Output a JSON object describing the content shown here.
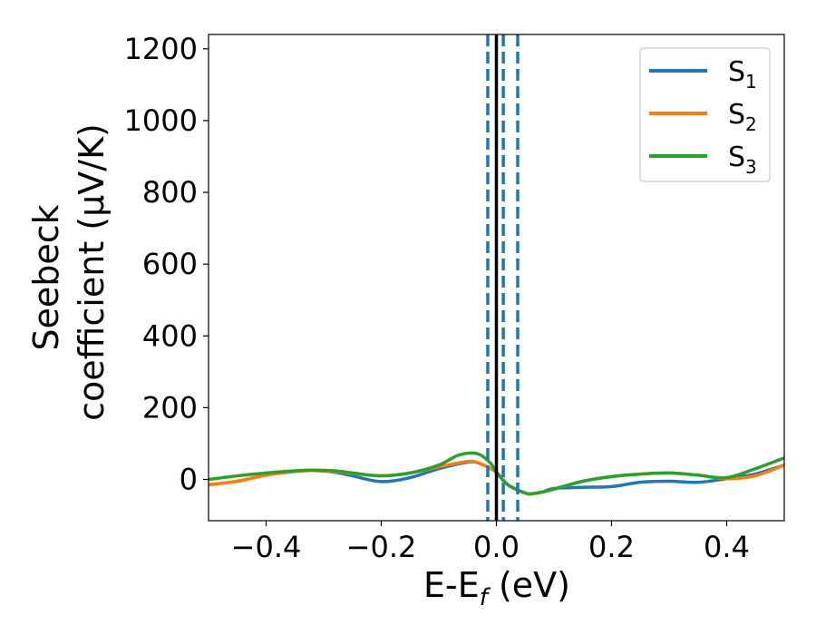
{
  "chart_data": {
    "type": "line",
    "xlabel": "E-E$_f$ (eV)",
    "xlabel_parts": {
      "base": "E-E",
      "sub": "f",
      "tail": " (eV)"
    },
    "ylabel_line1": "Seebeck",
    "ylabel_line2": "coefficient  (μV/K)",
    "xlim": [
      -0.5,
      0.5
    ],
    "ylim": [
      -115,
      1240
    ],
    "xticks": [
      -0.4,
      -0.2,
      0.0,
      0.2,
      0.4
    ],
    "xtick_labels": [
      "−0.4",
      "−0.2",
      "0.0",
      "0.2",
      "0.4"
    ],
    "yticks": [
      0,
      200,
      400,
      600,
      800,
      1000,
      1200
    ],
    "ytick_labels": [
      "0",
      "200",
      "400",
      "600",
      "800",
      "1000",
      "1200"
    ],
    "grid": false,
    "legend_position": "top-right",
    "vlines": [
      {
        "x": 0.0,
        "style": "solid",
        "color": "#000000"
      },
      {
        "x": -0.015,
        "style": "dashed",
        "color": "#1f77b4"
      },
      {
        "x": 0.012,
        "style": "dashed",
        "color": "#1f77b4"
      },
      {
        "x": 0.037,
        "style": "dashed",
        "color": "#1f77b4"
      }
    ],
    "series": [
      {
        "name": "S1",
        "label_base": "S",
        "label_sub": "1",
        "color": "#1f77b4",
        "x": [
          -0.5,
          -0.45,
          -0.4,
          -0.35,
          -0.32,
          -0.28,
          -0.25,
          -0.2,
          -0.15,
          -0.1,
          -0.05,
          -0.03,
          0.0,
          0.02,
          0.05,
          0.06,
          0.08,
          0.1,
          0.15,
          0.2,
          0.25,
          0.3,
          0.35,
          0.4,
          0.45,
          0.5
        ],
        "y": [
          -15,
          -5,
          12,
          22,
          25,
          20,
          10,
          -6,
          5,
          30,
          48,
          45,
          20,
          -15,
          -38,
          -40,
          -35,
          -25,
          -22,
          -20,
          -8,
          -5,
          -8,
          2,
          15,
          40
        ]
      },
      {
        "name": "S2",
        "label_base": "S",
        "label_sub": "2",
        "color": "#ff7f0e",
        "x": [
          -0.5,
          -0.45,
          -0.4,
          -0.35,
          -0.32,
          -0.28,
          -0.25,
          -0.2,
          -0.15,
          -0.1,
          -0.05,
          -0.03,
          0.0,
          0.02,
          0.05,
          0.06,
          0.08,
          0.1,
          0.15,
          0.2,
          0.25,
          0.3,
          0.35,
          0.4,
          0.45,
          0.5
        ],
        "y": [
          -15,
          -5,
          12,
          22,
          25,
          22,
          17,
          10,
          18,
          35,
          50,
          45,
          20,
          -15,
          -38,
          -40,
          -35,
          -27,
          -5,
          8,
          15,
          18,
          12,
          2,
          10,
          40
        ]
      },
      {
        "name": "S3",
        "label_base": "S",
        "label_sub": "3",
        "color": "#2ca02c",
        "x": [
          -0.5,
          -0.45,
          -0.4,
          -0.35,
          -0.32,
          -0.28,
          -0.25,
          -0.2,
          -0.15,
          -0.1,
          -0.07,
          -0.05,
          -0.03,
          -0.01,
          0.0,
          0.02,
          0.05,
          0.06,
          0.08,
          0.1,
          0.15,
          0.2,
          0.25,
          0.3,
          0.35,
          0.4,
          0.45,
          0.5
        ],
        "y": [
          0,
          10,
          18,
          24,
          26,
          24,
          18,
          10,
          18,
          40,
          65,
          73,
          70,
          45,
          20,
          -15,
          -38,
          -40,
          -35,
          -27,
          -5,
          8,
          15,
          18,
          12,
          5,
          30,
          60
        ]
      }
    ]
  }
}
